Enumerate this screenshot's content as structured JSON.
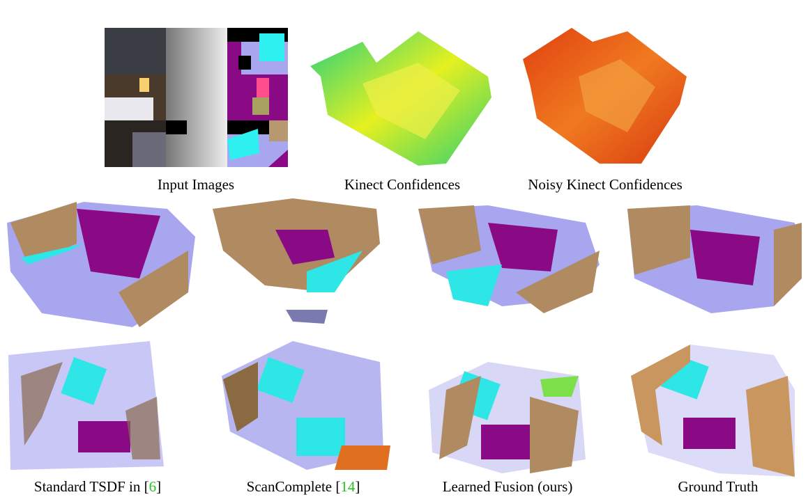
{
  "figure": {
    "top_captions": [
      "Input Images",
      "Kinect Confidences",
      "Noisy Kinect Confidences"
    ],
    "bottom_captions": [
      {
        "parts": [
          "Standard TSDF in [",
          "6",
          "]"
        ]
      },
      {
        "parts": [
          "ScanComplete [",
          "14",
          "]"
        ]
      },
      {
        "parts": [
          "Learned Fusion (ours)"
        ]
      },
      {
        "parts": [
          "Ground Truth"
        ]
      }
    ]
  }
}
